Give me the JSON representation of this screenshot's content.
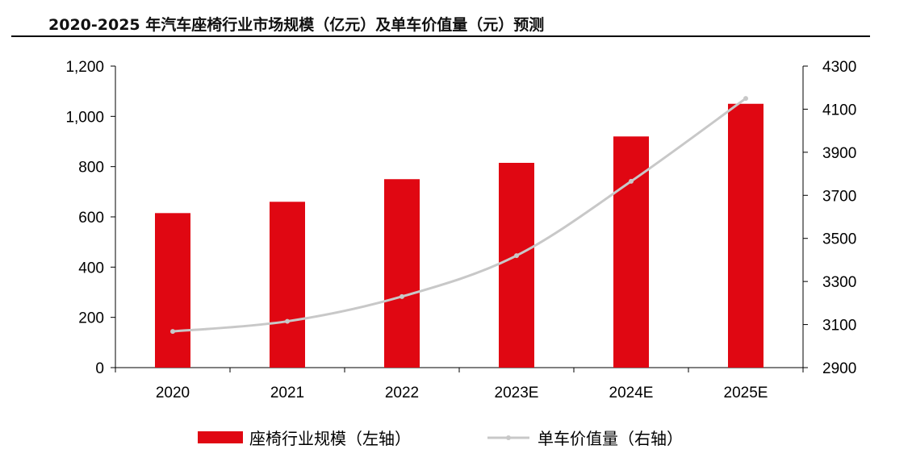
{
  "title": "2020-2025 年汽车座椅行业市场规模（亿元）及单车价值量（元）预测",
  "colors": {
    "bar": "#e00712",
    "line": "#c8c8c8",
    "axis": "#000000"
  },
  "chart_data": {
    "type": "bar",
    "categories": [
      "2020",
      "2021",
      "2022",
      "2023E",
      "2024E",
      "2025E"
    ],
    "series": [
      {
        "name": "座椅行业规模（左轴）",
        "type": "bar",
        "axis": "left",
        "values": [
          615,
          660,
          750,
          815,
          920,
          1050
        ]
      },
      {
        "name": "单车价值量（右轴）",
        "type": "line",
        "axis": "right",
        "values": [
          3068,
          3115,
          3230,
          3420,
          3765,
          4150
        ]
      }
    ],
    "y_left": {
      "min": 0,
      "max": 1200,
      "ticks": [
        "0",
        "200",
        "400",
        "600",
        "800",
        "1,000",
        "1,200"
      ]
    },
    "y_right": {
      "min": 2900,
      "max": 4300,
      "ticks": [
        "2900",
        "3100",
        "3300",
        "3500",
        "3700",
        "3900",
        "4100",
        "4300"
      ]
    },
    "grid": false,
    "legend_position": "bottom"
  }
}
